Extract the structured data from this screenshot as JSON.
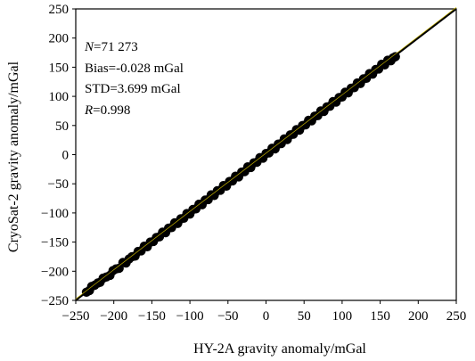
{
  "chart_data": {
    "type": "scatter",
    "title": "",
    "xlabel": "HY-2A gravity anomaly/mGal",
    "ylabel": "CryoSat-2 gravity anomaly/mGal",
    "xlim": [
      -250,
      250
    ],
    "ylim": [
      -250,
      250
    ],
    "xticks": [
      -250,
      -200,
      -150,
      -100,
      -50,
      0,
      50,
      100,
      150,
      200,
      250
    ],
    "yticks": [
      -250,
      -200,
      -150,
      -100,
      -50,
      0,
      50,
      100,
      150,
      200,
      250
    ],
    "grid": false,
    "point_color": "#000000",
    "reference_line": {
      "x": [
        -250,
        250
      ],
      "y": [
        -250,
        250
      ],
      "color": "#000000"
    },
    "fit_line_color": "#c8b400",
    "annotations": [
      {
        "italic": "N",
        "rest": "=71 273"
      },
      {
        "italic": "",
        "rest": "Bias=-0.028 mGal"
      },
      {
        "italic": "",
        "rest": "STD=3.699 mGal"
      },
      {
        "italic": "R",
        "rest": "=0.998"
      }
    ],
    "series": [
      {
        "points": [
          [
            -236,
            -236
          ],
          [
            -232,
            -233
          ],
          [
            -229,
            -226
          ],
          [
            -225,
            -224
          ],
          [
            -221,
            -220
          ],
          [
            -218,
            -219
          ],
          [
            -214,
            -212
          ],
          [
            -210,
            -210
          ],
          [
            -205,
            -207
          ],
          [
            -201,
            -199
          ],
          [
            -197,
            -196
          ],
          [
            -193,
            -195
          ],
          [
            -188,
            -185
          ],
          [
            -184,
            -186
          ],
          [
            -180,
            -179
          ],
          [
            -176,
            -175
          ],
          [
            -172,
            -174
          ],
          [
            -168,
            -166
          ],
          [
            -164,
            -165
          ],
          [
            -160,
            -157
          ],
          [
            -156,
            -158
          ],
          [
            -152,
            -150
          ],
          [
            -148,
            -149
          ],
          [
            -144,
            -142
          ],
          [
            -140,
            -141
          ],
          [
            -136,
            -133
          ],
          [
            -132,
            -134
          ],
          [
            -128,
            -126
          ],
          [
            -124,
            -125
          ],
          [
            -120,
            -117
          ],
          [
            -116,
            -118
          ],
          [
            -112,
            -110
          ],
          [
            -108,
            -109
          ],
          [
            -104,
            -101
          ],
          [
            -100,
            -102
          ],
          [
            -96,
            -94
          ],
          [
            -92,
            -93
          ],
          [
            -88,
            -85
          ],
          [
            -84,
            -86
          ],
          [
            -80,
            -78
          ],
          [
            -76,
            -77
          ],
          [
            -72,
            -69
          ],
          [
            -68,
            -70
          ],
          [
            -64,
            -62
          ],
          [
            -60,
            -61
          ],
          [
            -56,
            -53
          ],
          [
            -52,
            -54
          ],
          [
            -48,
            -46
          ],
          [
            -44,
            -45
          ],
          [
            -40,
            -37
          ],
          [
            -36,
            -38
          ],
          [
            -32,
            -30
          ],
          [
            -28,
            -29
          ],
          [
            -24,
            -21
          ],
          [
            -20,
            -22
          ],
          [
            -16,
            -14
          ],
          [
            -12,
            -13
          ],
          [
            -8,
            -5
          ],
          [
            -4,
            -6
          ],
          [
            0,
            2
          ],
          [
            4,
            3
          ],
          [
            8,
            11
          ],
          [
            12,
            10
          ],
          [
            16,
            18
          ],
          [
            20,
            19
          ],
          [
            24,
            27
          ],
          [
            28,
            26
          ],
          [
            32,
            34
          ],
          [
            36,
            35
          ],
          [
            40,
            43
          ],
          [
            44,
            42
          ],
          [
            48,
            50
          ],
          [
            52,
            51
          ],
          [
            56,
            59
          ],
          [
            60,
            58
          ],
          [
            64,
            66
          ],
          [
            68,
            67
          ],
          [
            72,
            75
          ],
          [
            76,
            74
          ],
          [
            80,
            82
          ],
          [
            84,
            83
          ],
          [
            88,
            91
          ],
          [
            92,
            90
          ],
          [
            96,
            98
          ],
          [
            100,
            99
          ],
          [
            104,
            107
          ],
          [
            108,
            106
          ],
          [
            112,
            114
          ],
          [
            116,
            115
          ],
          [
            120,
            123
          ],
          [
            124,
            122
          ],
          [
            128,
            130
          ],
          [
            132,
            131
          ],
          [
            136,
            139
          ],
          [
            140,
            138
          ],
          [
            144,
            146
          ],
          [
            148,
            147
          ],
          [
            152,
            155
          ],
          [
            156,
            154
          ],
          [
            160,
            162
          ],
          [
            164,
            161
          ],
          [
            167,
            166
          ],
          [
            170,
            168
          ]
        ]
      }
    ]
  }
}
